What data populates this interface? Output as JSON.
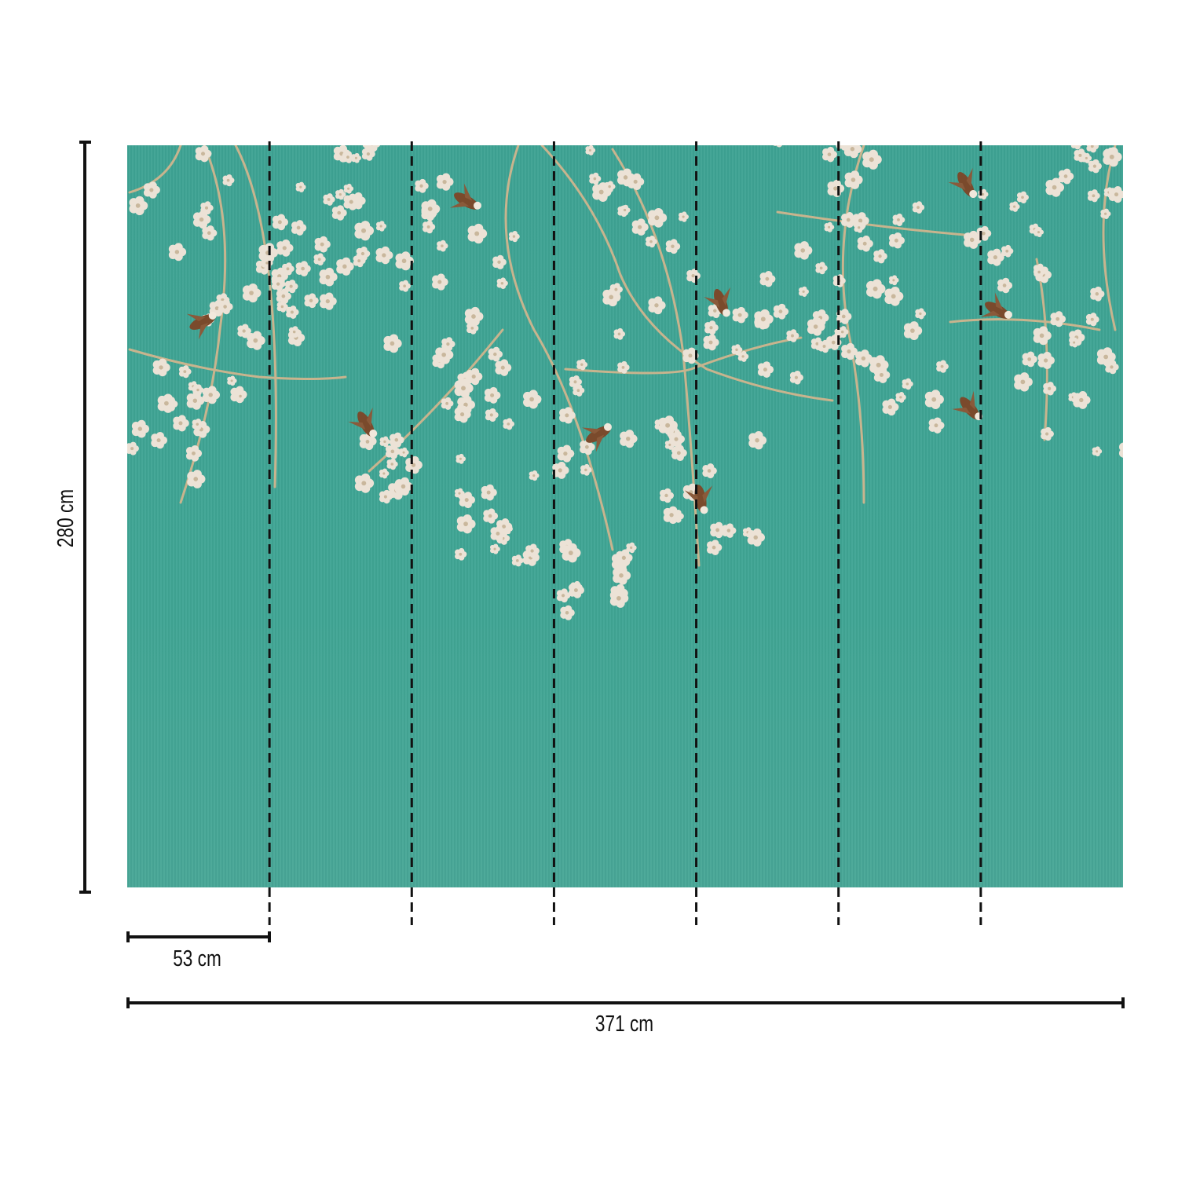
{
  "diagram": {
    "height_label": "280 cm",
    "panel_width_label": "53 cm",
    "total_width_label": "371 cm",
    "panel_count": 7
  },
  "colors": {
    "background_teal": "#3fa595",
    "blossom": "#ece2d6",
    "branch": "#c8b48e",
    "bird": "#7a4a2c",
    "lines": "#111111"
  }
}
